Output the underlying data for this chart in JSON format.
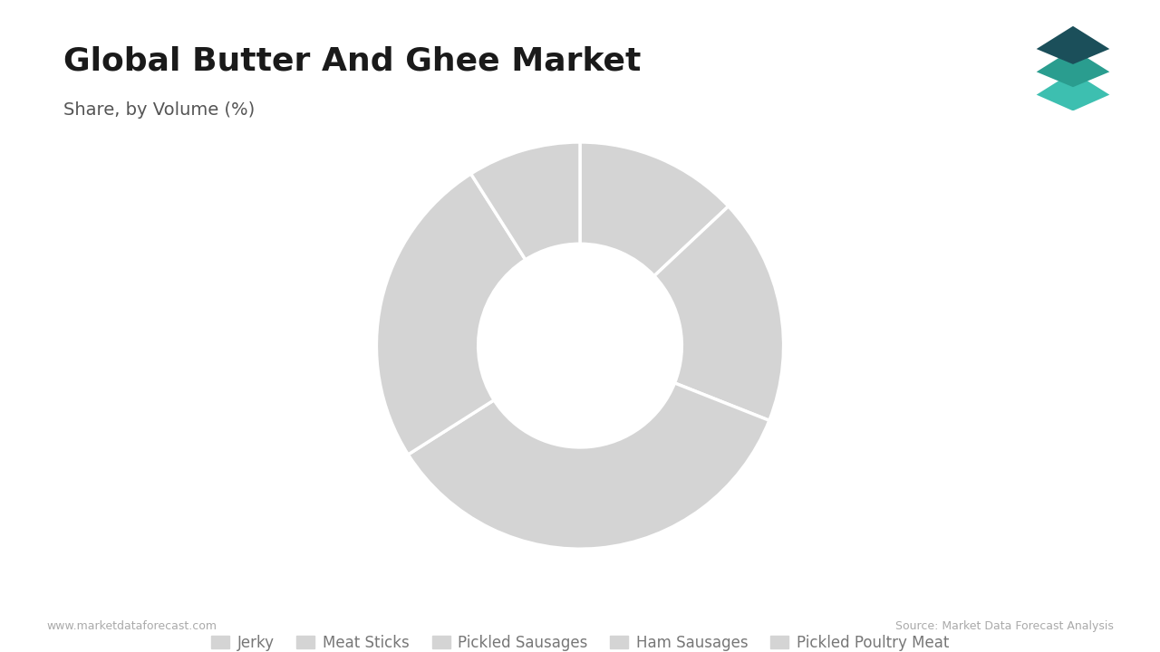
{
  "title": "Global Butter And Ghee Market",
  "subtitle": "Share, by Volume (%)",
  "categories": [
    "Jerky",
    "Meat Sticks",
    "Pickled Sausages",
    "Ham Sausages",
    "Pickled Poultry Meat"
  ],
  "values": [
    13,
    18,
    35,
    25,
    9
  ],
  "slice_color": "#d4d4d4",
  "wedge_edge_color": "#ffffff",
  "background_color": "#ffffff",
  "title_color": "#1a1a1a",
  "subtitle_color": "#555555",
  "legend_color": "#777777",
  "footer_left": "www.marketdataforecast.com",
  "footer_right": "Source: Market Data Forecast Analysis",
  "title_bar_color": "#2a9d8f",
  "donut_hole_ratio": 0.5,
  "startangle": 90
}
